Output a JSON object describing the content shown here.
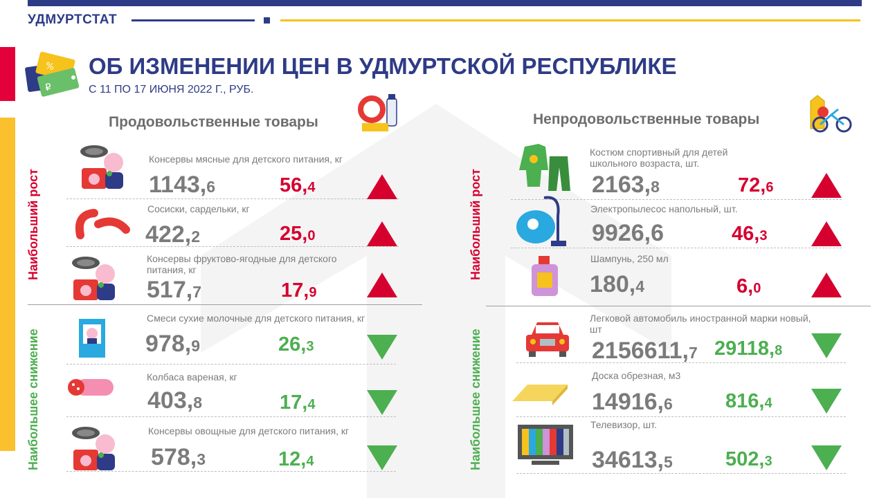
{
  "org": "УДМУРТСТАТ",
  "title": "ОБ ИЗМЕНЕНИИ ЦЕН В УДМУРТСКОЙ РЕСПУБЛИКЕ",
  "subtitle": "С 11 ПО 17 ИЮНЯ 2022 Г., РУБ.",
  "sections": {
    "food": "Продовольственные товары",
    "nonfood": "Непродовольственные товары"
  },
  "labels": {
    "growth": "Наибольший рост",
    "decline": "Наибольшее снижение"
  },
  "colors": {
    "brand": "#2e3b86",
    "accent": "#f6c21c",
    "up": "#d6002f",
    "down": "#4caf50"
  },
  "food_up": [
    {
      "name": "Консервы мясные для детского питания, кг",
      "price_int": "1143",
      "price_dec": "6",
      "chg_int": "56",
      "chg_dec": "4",
      "icon": "baby-food-can-icon"
    },
    {
      "name": "Сосиски, сардельки, кг",
      "price_int": "422",
      "price_dec": "2",
      "chg_int": "25",
      "chg_dec": "0",
      "icon": "sausage-icon"
    },
    {
      "name": "Консервы фруктово-ягодные для детского питания, кг",
      "price_int": "517",
      "price_dec": "7",
      "chg_int": "17",
      "chg_dec": "9",
      "icon": "baby-food-can-icon"
    }
  ],
  "food_down": [
    {
      "name": "Смеси сухие молочные для детского питания, кг",
      "price_int": "978",
      "price_dec": "9",
      "chg_int": "26",
      "chg_dec": "3",
      "icon": "milk-formula-box-icon"
    },
    {
      "name": "Колбаса вареная, кг",
      "price_int": "403",
      "price_dec": "8",
      "chg_int": "17",
      "chg_dec": "4",
      "icon": "boiled-sausage-icon"
    },
    {
      "name": "Консервы овощные  для детского питания, кг",
      "price_int": "578",
      "price_dec": "3",
      "chg_int": "12",
      "chg_dec": "4",
      "icon": "baby-food-can-icon"
    }
  ],
  "nonfood_up": [
    {
      "name": "Костюм спортивный для детей школьного возраста, шт.",
      "price_int": "2163",
      "price_dec": "8",
      "chg_int": "72",
      "chg_dec": "6",
      "icon": "tracksuit-icon"
    },
    {
      "name": "Электропылесос напольный, шт.",
      "price_int": "9926",
      "price_dec": "6",
      "chg_int": "46",
      "chg_dec": "3",
      "icon": "vacuum-cleaner-icon"
    },
    {
      "name": "Шампунь, 250 мл",
      "price_int": "180",
      "price_dec": "4",
      "chg_int": "6",
      "chg_dec": "0",
      "icon": "shampoo-bottle-icon"
    }
  ],
  "nonfood_down": [
    {
      "name": "Легковой автомобиль иностранной марки новый, шт",
      "price_int": "2156611",
      "price_dec": "7",
      "chg_int": "29118",
      "chg_dec": "8",
      "icon": "car-icon"
    },
    {
      "name": "Доска обрезная, м3",
      "price_int": "14916",
      "price_dec": "6",
      "chg_int": "816",
      "chg_dec": "4",
      "icon": "board-icon"
    },
    {
      "name": "Телевизор, шт.",
      "price_int": "34613",
      "price_dec": "5",
      "chg_int": "502",
      "chg_dec": "3",
      "icon": "tv-icon"
    }
  ]
}
